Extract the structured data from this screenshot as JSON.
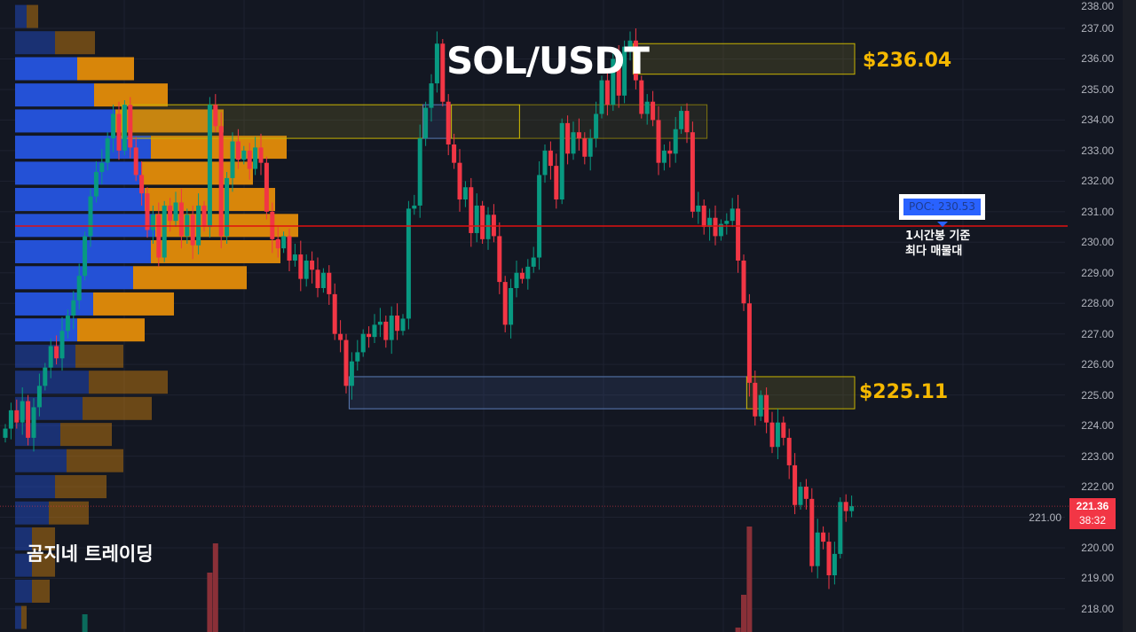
{
  "chart_data": {
    "type": "candlestick",
    "title": "SOL/USDT",
    "yaxis": {
      "ticks": [
        "238.00",
        "237.00",
        "236.00",
        "235.00",
        "234.00",
        "233.00",
        "232.00",
        "231.00",
        "230.00",
        "229.00",
        "228.00",
        "227.00",
        "226.00",
        "225.00",
        "224.00",
        "223.00",
        "222.00",
        "221.00",
        "220.00",
        "219.00",
        "218.00"
      ],
      "ylim": [
        217.3,
        238.0
      ]
    },
    "grid": true,
    "colors": {
      "up": "#089981",
      "down": "#f23645",
      "poc_line": "#e01010",
      "zone_yellow": "#c8b400",
      "zone_blue": "#5a7bb5",
      "level_label": "#f5b800",
      "profile_buy": "#2451d6",
      "profile_sell": "#d8860a"
    },
    "first_open": 223.6,
    "closes": [
      223.9,
      224.5,
      224.1,
      224.8,
      223.6,
      224.6,
      225.3,
      225.9,
      226.6,
      226.2,
      227.1,
      227.6,
      228.1,
      228.9,
      230.2,
      231.5,
      232.3,
      232.6,
      233.4,
      234.2,
      233.0,
      234.5,
      233.1,
      232.2,
      231.6,
      230.4,
      230.9,
      229.5,
      231.2,
      230.7,
      231.3,
      230.2,
      230.9,
      229.9,
      231.2,
      230.5,
      234.5,
      233.8,
      230.2,
      232.1,
      233.3,
      232.7,
      233.0,
      232.4,
      233.1,
      232.6,
      231.0,
      230.1,
      229.8,
      230.2,
      229.4,
      229.6,
      228.8,
      229.4,
      229.1,
      228.5,
      229.0,
      228.3,
      227.0,
      226.8,
      225.3,
      226.1,
      226.4,
      227.0,
      226.9,
      227.3,
      227.4,
      226.8,
      227.6,
      227.1,
      227.5,
      231.1,
      231.2,
      233.4,
      234.4,
      235.2,
      236.5,
      234.6,
      233.2,
      232.6,
      231.4,
      231.8,
      230.3,
      231.2,
      230.1,
      230.9,
      230.2,
      228.7,
      227.3,
      228.5,
      229.0,
      228.8,
      229.2,
      229.5,
      232.2,
      233.0,
      232.5,
      231.4,
      233.9,
      232.9,
      233.6,
      233.4,
      232.8,
      233.4,
      234.2,
      235.3,
      234.5,
      236.0,
      234.8,
      236.4,
      236.6,
      235.3,
      234.2,
      234.6,
      234.0,
      232.6,
      233.0,
      232.9,
      233.7,
      234.3,
      233.6,
      231.0,
      231.2,
      230.5,
      230.8,
      230.2,
      230.6,
      230.7,
      231.1,
      229.4,
      228.0,
      225.4,
      224.3,
      225.0,
      224.1,
      223.3,
      224.1,
      223.6,
      222.7,
      221.4,
      222.0,
      221.6,
      219.4,
      220.5,
      220.2,
      219.1,
      219.8,
      221.5,
      221.2,
      221.36
    ],
    "volume_spikes": [
      {
        "candle": 14,
        "volume": 20,
        "dir": "up"
      },
      {
        "candle": 36,
        "volume": 67,
        "dir": "down"
      },
      {
        "candle": 37,
        "volume": 100,
        "dir": "down"
      },
      {
        "candle": 129,
        "volume": 5,
        "dir": "down"
      },
      {
        "candle": 130,
        "volume": 42,
        "dir": "down"
      },
      {
        "candle": 131,
        "volume": 119,
        "dir": "down"
      }
    ],
    "volume_profile": {
      "poc": 230.53,
      "rows": [
        {
          "price": 237.39,
          "buy": 13,
          "sell": 13,
          "value_area": false
        },
        {
          "price": 236.53,
          "buy": 45,
          "sell": 45,
          "value_area": false
        },
        {
          "price": 235.68,
          "buy": 70,
          "sell": 64,
          "value_area": true
        },
        {
          "price": 234.82,
          "buy": 89,
          "sell": 83,
          "value_area": true
        },
        {
          "price": 233.97,
          "buy": 113,
          "sell": 122,
          "value_area": true
        },
        {
          "price": 233.11,
          "buy": 153,
          "sell": 153,
          "value_area": true
        },
        {
          "price": 232.26,
          "buy": 143,
          "sell": 125,
          "value_area": true
        },
        {
          "price": 231.4,
          "buy": 146,
          "sell": 147,
          "value_area": true
        },
        {
          "price": 230.55,
          "buy": 158,
          "sell": 161,
          "value_area": true
        },
        {
          "price": 229.69,
          "buy": 153,
          "sell": 146,
          "value_area": true
        },
        {
          "price": 228.84,
          "buy": 133,
          "sell": 128,
          "value_area": true
        },
        {
          "price": 227.98,
          "buy": 88,
          "sell": 91,
          "value_area": true
        },
        {
          "price": 227.13,
          "buy": 70,
          "sell": 76,
          "value_area": true
        },
        {
          "price": 226.27,
          "buy": 68,
          "sell": 54,
          "value_area": false
        },
        {
          "price": 225.42,
          "buy": 83,
          "sell": 89,
          "value_area": false
        },
        {
          "price": 224.56,
          "buy": 76,
          "sell": 78,
          "value_area": false
        },
        {
          "price": 223.71,
          "buy": 51,
          "sell": 58,
          "value_area": false
        },
        {
          "price": 222.85,
          "buy": 58,
          "sell": 64,
          "value_area": false
        },
        {
          "price": 222.0,
          "buy": 45,
          "sell": 58,
          "value_area": false
        },
        {
          "price": 221.14,
          "buy": 38,
          "sell": 45,
          "value_area": false
        },
        {
          "price": 220.29,
          "buy": 19,
          "sell": 26,
          "value_area": false
        },
        {
          "price": 219.43,
          "buy": 19,
          "sell": 26,
          "value_area": false
        },
        {
          "price": 218.58,
          "buy": 19,
          "sell": 20,
          "value_area": false
        },
        {
          "price": 217.72,
          "buy": 7,
          "sell": 6,
          "value_area": false
        }
      ]
    },
    "zones": [
      {
        "type": "yellow",
        "top": 236.5,
        "bottom": 235.5,
        "from_candle": 111,
        "to_candle": 150
      },
      {
        "type": "yellow",
        "top": 234.5,
        "bottom": 233.4,
        "from_candle": 21,
        "to_candle": 74
      },
      {
        "type": "blue",
        "top": 234.5,
        "bottom": 233.4,
        "from_candle": 74,
        "to_candle": 79
      },
      {
        "type": "yellow",
        "top": 234.5,
        "bottom": 233.4,
        "from_candle": 79,
        "to_candle": 91
      },
      {
        "type": "yellow-dim",
        "top": 234.5,
        "bottom": 233.4,
        "from_candle": 91,
        "to_candle": 124
      },
      {
        "type": "blue",
        "top": 225.6,
        "bottom": 224.55,
        "from_candle": 61,
        "to_candle": 131
      },
      {
        "type": "yellow",
        "top": 225.6,
        "bottom": 224.55,
        "from_candle": 131,
        "to_candle": 150
      }
    ],
    "annotations": {
      "level_high": "$236.04",
      "level_low": "$225.11",
      "poc_label": "POC: 230.53",
      "poc_note_line1": "1시간봉 기준",
      "poc_note_line2": "최다 매물대",
      "brand": "곰지네 트레이딩"
    },
    "last_price": {
      "price": "221.36",
      "countdown": "38:32",
      "value": 221.36
    }
  }
}
